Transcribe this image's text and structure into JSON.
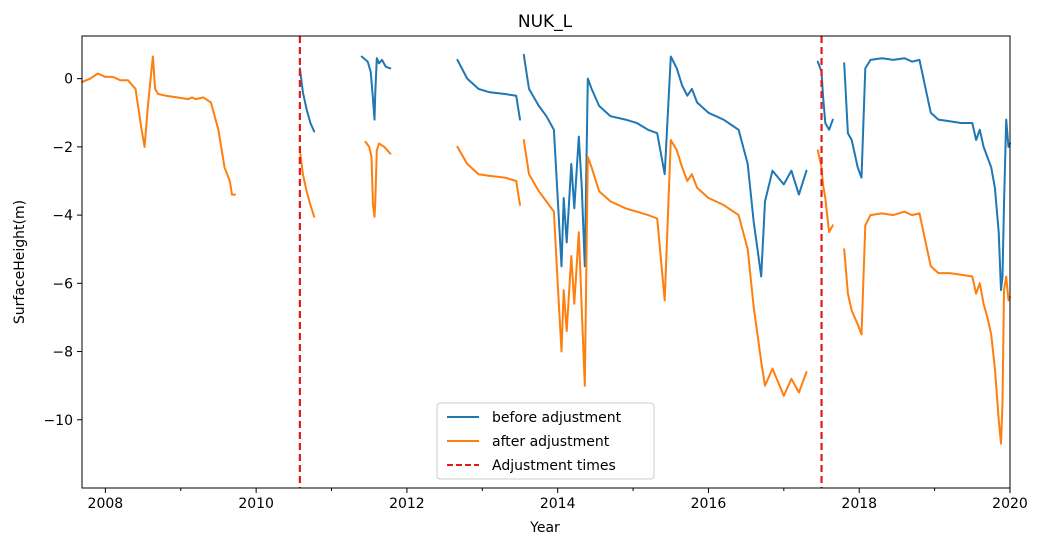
{
  "chart_data": {
    "type": "line",
    "title": "NUK_L",
    "xlabel": "Year",
    "ylabel": "SurfaceHeight(m)",
    "xlim": [
      2007.69,
      2020.0
    ],
    "ylim": [
      -12.0,
      1.25
    ],
    "x_ticks": [
      2008,
      2010,
      2012,
      2014,
      2016,
      2018,
      2020
    ],
    "y_ticks": [
      0,
      -2,
      -4,
      -6,
      -8,
      -10
    ],
    "grid": false,
    "legend_position": "bottom-center",
    "series": [
      {
        "name": "before adjustment",
        "color": "#1f77b4",
        "segments": [
          [
            [
              2010.58,
              0.3
            ],
            [
              2010.62,
              -0.4
            ],
            [
              2010.67,
              -0.9
            ],
            [
              2010.72,
              -1.3
            ],
            [
              2010.77,
              -1.55
            ]
          ],
          [
            [
              2011.4,
              0.65
            ],
            [
              2011.48,
              0.5
            ],
            [
              2011.52,
              0.2
            ],
            [
              2011.55,
              -0.6
            ],
            [
              2011.57,
              -1.2
            ],
            [
              2011.58,
              -0.4
            ],
            [
              2011.6,
              0.6
            ],
            [
              2011.63,
              0.45
            ],
            [
              2011.67,
              0.55
            ],
            [
              2011.72,
              0.35
            ],
            [
              2011.78,
              0.3
            ]
          ],
          [
            [
              2012.67,
              0.55
            ],
            [
              2012.8,
              0.0
            ],
            [
              2012.95,
              -0.3
            ],
            [
              2013.1,
              -0.4
            ],
            [
              2013.3,
              -0.45
            ],
            [
              2013.45,
              -0.5
            ],
            [
              2013.5,
              -1.2
            ]
          ],
          [
            [
              2013.55,
              0.7
            ],
            [
              2013.62,
              -0.3
            ],
            [
              2013.75,
              -0.8
            ],
            [
              2013.85,
              -1.1
            ],
            [
              2013.95,
              -1.5
            ],
            [
              2014.0,
              -3.5
            ],
            [
              2014.05,
              -5.5
            ],
            [
              2014.08,
              -3.5
            ],
            [
              2014.12,
              -4.8
            ],
            [
              2014.18,
              -2.5
            ],
            [
              2014.22,
              -3.8
            ],
            [
              2014.28,
              -1.7
            ],
            [
              2014.32,
              -3.2
            ],
            [
              2014.36,
              -5.5
            ],
            [
              2014.4,
              0.0
            ],
            [
              2014.45,
              -0.3
            ],
            [
              2014.55,
              -0.8
            ],
            [
              2014.7,
              -1.1
            ],
            [
              2014.9,
              -1.2
            ],
            [
              2015.05,
              -1.3
            ],
            [
              2015.2,
              -1.5
            ],
            [
              2015.32,
              -1.6
            ],
            [
              2015.42,
              -2.8
            ],
            [
              2015.5,
              0.65
            ],
            [
              2015.58,
              0.3
            ],
            [
              2015.65,
              -0.2
            ],
            [
              2015.72,
              -0.5
            ],
            [
              2015.78,
              -0.3
            ],
            [
              2015.85,
              -0.7
            ],
            [
              2016.0,
              -1.0
            ],
            [
              2016.2,
              -1.2
            ],
            [
              2016.4,
              -1.5
            ],
            [
              2016.52,
              -2.5
            ],
            [
              2016.6,
              -4.2
            ],
            [
              2016.65,
              -5.0
            ],
            [
              2016.7,
              -5.8
            ],
            [
              2016.75,
              -3.6
            ],
            [
              2016.85,
              -2.7
            ],
            [
              2017.0,
              -3.1
            ],
            [
              2017.1,
              -2.7
            ],
            [
              2017.2,
              -3.4
            ],
            [
              2017.3,
              -2.7
            ]
          ],
          [
            [
              2017.45,
              0.5
            ],
            [
              2017.5,
              0.2
            ],
            [
              2017.52,
              -0.5
            ],
            [
              2017.55,
              -1.3
            ],
            [
              2017.6,
              -1.5
            ],
            [
              2017.65,
              -1.2
            ]
          ],
          [
            [
              2017.8,
              0.45
            ],
            [
              2017.85,
              -1.6
            ],
            [
              2017.9,
              -1.8
            ],
            [
              2017.98,
              -2.6
            ],
            [
              2018.03,
              -2.9
            ],
            [
              2018.08,
              0.3
            ],
            [
              2018.15,
              0.55
            ],
            [
              2018.3,
              0.6
            ],
            [
              2018.45,
              0.55
            ],
            [
              2018.6,
              0.6
            ],
            [
              2018.7,
              0.5
            ],
            [
              2018.8,
              0.55
            ],
            [
              2018.9,
              -0.5
            ],
            [
              2018.95,
              -1.0
            ],
            [
              2019.05,
              -1.2
            ],
            [
              2019.2,
              -1.25
            ],
            [
              2019.35,
              -1.3
            ],
            [
              2019.5,
              -1.3
            ],
            [
              2019.55,
              -1.8
            ],
            [
              2019.6,
              -1.5
            ],
            [
              2019.65,
              -2.0
            ],
            [
              2019.7,
              -2.3
            ],
            [
              2019.75,
              -2.6
            ],
            [
              2019.8,
              -3.2
            ],
            [
              2019.85,
              -4.5
            ],
            [
              2019.88,
              -6.2
            ],
            [
              2019.9,
              -5.8
            ],
            [
              2019.92,
              -3.7
            ],
            [
              2019.95,
              -1.2
            ],
            [
              2019.98,
              -2.0
            ],
            [
              2020.0,
              -1.9
            ]
          ]
        ]
      },
      {
        "name": "after adjustment",
        "color": "#ff7f0e",
        "segments": [
          [
            [
              2007.69,
              -0.1
            ],
            [
              2007.8,
              0.0
            ],
            [
              2007.9,
              0.15
            ],
            [
              2008.0,
              0.05
            ],
            [
              2008.1,
              0.05
            ],
            [
              2008.2,
              -0.05
            ],
            [
              2008.3,
              -0.05
            ],
            [
              2008.4,
              -0.3
            ],
            [
              2008.48,
              -1.5
            ],
            [
              2008.52,
              -2.0
            ],
            [
              2008.56,
              -0.9
            ],
            [
              2008.6,
              0.0
            ],
            [
              2008.63,
              0.65
            ],
            [
              2008.66,
              -0.3
            ],
            [
              2008.7,
              -0.45
            ],
            [
              2008.8,
              -0.5
            ],
            [
              2008.95,
              -0.55
            ],
            [
              2009.1,
              -0.6
            ],
            [
              2009.15,
              -0.55
            ],
            [
              2009.2,
              -0.6
            ],
            [
              2009.3,
              -0.55
            ],
            [
              2009.4,
              -0.7
            ],
            [
              2009.5,
              -1.5
            ],
            [
              2009.58,
              -2.6
            ],
            [
              2009.65,
              -3.0
            ],
            [
              2009.68,
              -3.4
            ],
            [
              2009.72,
              -3.4
            ]
          ],
          [
            [
              2010.58,
              -2.1
            ],
            [
              2010.62,
              -2.8
            ],
            [
              2010.67,
              -3.3
            ],
            [
              2010.72,
              -3.7
            ],
            [
              2010.77,
              -4.05
            ]
          ],
          [
            [
              2011.45,
              -1.85
            ],
            [
              2011.5,
              -2.0
            ],
            [
              2011.53,
              -2.3
            ],
            [
              2011.55,
              -3.7
            ],
            [
              2011.57,
              -4.05
            ],
            [
              2011.58,
              -3.6
            ],
            [
              2011.6,
              -2.1
            ],
            [
              2011.63,
              -1.9
            ],
            [
              2011.7,
              -2.0
            ],
            [
              2011.78,
              -2.2
            ]
          ],
          [
            [
              2012.67,
              -2.0
            ],
            [
              2012.8,
              -2.5
            ],
            [
              2012.95,
              -2.8
            ],
            [
              2013.1,
              -2.85
            ],
            [
              2013.3,
              -2.9
            ],
            [
              2013.45,
              -3.0
            ],
            [
              2013.5,
              -3.7
            ]
          ],
          [
            [
              2013.55,
              -1.8
            ],
            [
              2013.62,
              -2.8
            ],
            [
              2013.75,
              -3.3
            ],
            [
              2013.85,
              -3.6
            ],
            [
              2013.95,
              -3.9
            ],
            [
              2014.0,
              -6.0
            ],
            [
              2014.05,
              -8.0
            ],
            [
              2014.08,
              -6.2
            ],
            [
              2014.12,
              -7.4
            ],
            [
              2014.18,
              -5.2
            ],
            [
              2014.22,
              -6.6
            ],
            [
              2014.28,
              -4.5
            ],
            [
              2014.32,
              -6.8
            ],
            [
              2014.36,
              -9.0
            ],
            [
              2014.4,
              -2.3
            ],
            [
              2014.45,
              -2.6
            ],
            [
              2014.55,
              -3.3
            ],
            [
              2014.7,
              -3.6
            ],
            [
              2014.9,
              -3.8
            ],
            [
              2015.05,
              -3.9
            ],
            [
              2015.2,
              -4.0
            ],
            [
              2015.32,
              -4.1
            ],
            [
              2015.42,
              -6.5
            ],
            [
              2015.5,
              -1.8
            ],
            [
              2015.58,
              -2.1
            ],
            [
              2015.65,
              -2.6
            ],
            [
              2015.72,
              -3.0
            ],
            [
              2015.78,
              -2.8
            ],
            [
              2015.85,
              -3.2
            ],
            [
              2016.0,
              -3.5
            ],
            [
              2016.2,
              -3.7
            ],
            [
              2016.4,
              -4.0
            ],
            [
              2016.52,
              -5.0
            ],
            [
              2016.6,
              -6.7
            ],
            [
              2016.65,
              -7.5
            ],
            [
              2016.7,
              -8.3
            ],
            [
              2016.75,
              -9.0
            ],
            [
              2016.85,
              -8.5
            ],
            [
              2017.0,
              -9.3
            ],
            [
              2017.1,
              -8.8
            ],
            [
              2017.2,
              -9.2
            ],
            [
              2017.3,
              -8.6
            ]
          ],
          [
            [
              2017.45,
              -2.1
            ],
            [
              2017.5,
              -2.6
            ],
            [
              2017.52,
              -3.1
            ],
            [
              2017.55,
              -3.5
            ],
            [
              2017.6,
              -4.5
            ],
            [
              2017.65,
              -4.3
            ]
          ],
          [
            [
              2017.8,
              -5.0
            ],
            [
              2017.85,
              -6.3
            ],
            [
              2017.9,
              -6.8
            ],
            [
              2017.98,
              -7.2
            ],
            [
              2018.03,
              -7.5
            ],
            [
              2018.08,
              -4.3
            ],
            [
              2018.15,
              -4.0
            ],
            [
              2018.3,
              -3.95
            ],
            [
              2018.45,
              -4.0
            ],
            [
              2018.6,
              -3.9
            ],
            [
              2018.7,
              -4.0
            ],
            [
              2018.8,
              -3.95
            ],
            [
              2018.9,
              -5.0
            ],
            [
              2018.95,
              -5.5
            ],
            [
              2019.05,
              -5.7
            ],
            [
              2019.2,
              -5.7
            ],
            [
              2019.35,
              -5.75
            ],
            [
              2019.5,
              -5.8
            ],
            [
              2019.55,
              -6.3
            ],
            [
              2019.6,
              -6.0
            ],
            [
              2019.65,
              -6.6
            ],
            [
              2019.7,
              -7.0
            ],
            [
              2019.75,
              -7.5
            ],
            [
              2019.8,
              -8.5
            ],
            [
              2019.85,
              -10.0
            ],
            [
              2019.88,
              -10.7
            ],
            [
              2019.9,
              -9.5
            ],
            [
              2019.92,
              -6.2
            ],
            [
              2019.95,
              -5.8
            ],
            [
              2019.98,
              -6.5
            ],
            [
              2020.0,
              -6.4
            ]
          ]
        ]
      },
      {
        "name": "Adjustment times",
        "color": "#e31a1c",
        "style": "dashed",
        "vertical_lines_x": [
          2010.58,
          2017.5
        ]
      }
    ]
  }
}
